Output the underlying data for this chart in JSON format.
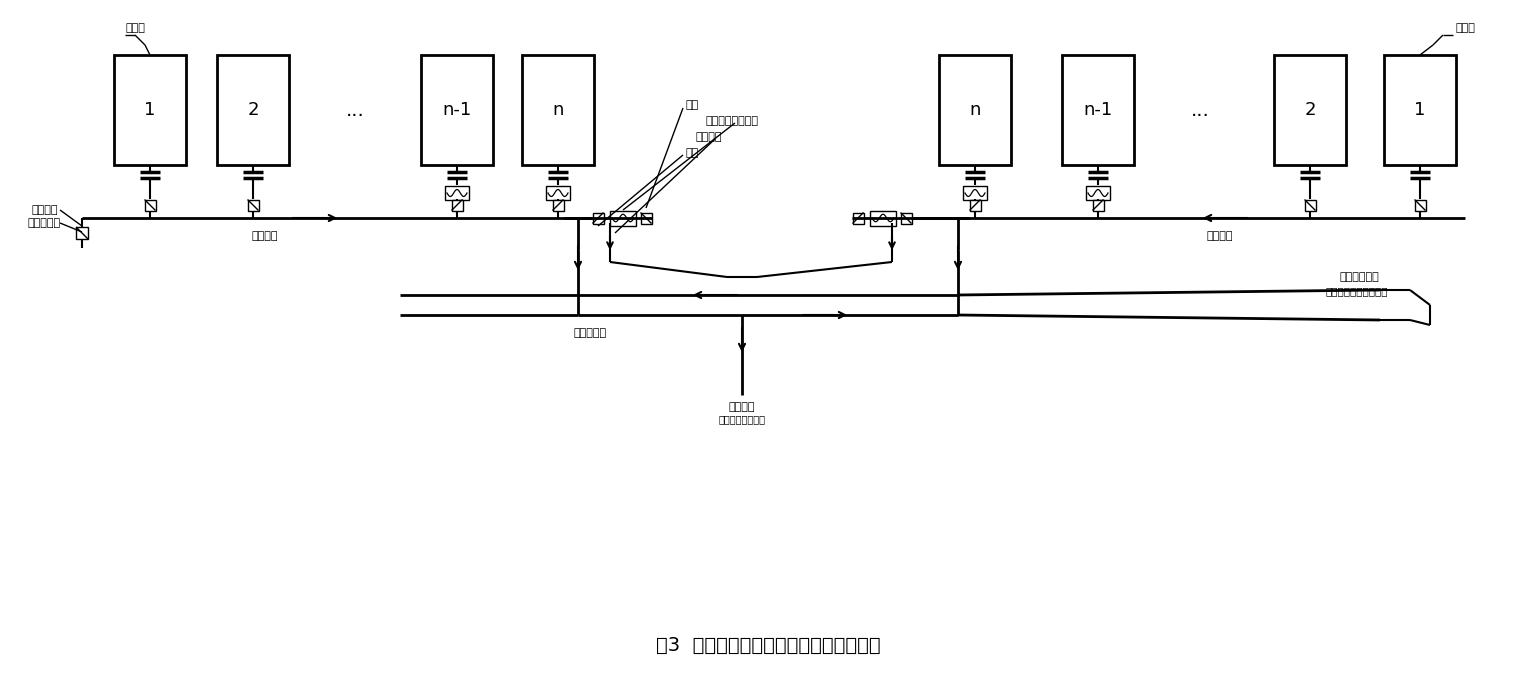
{
  "title": "图3  支烟管烟气余热回收利用流程示意图",
  "bg_color": "#ffffff",
  "left_tanks": [
    "1",
    "2",
    "...",
    "n-1",
    "n"
  ],
  "right_tanks": [
    "n",
    "n-1",
    "...",
    "2",
    "1"
  ],
  "label_dianjiecao_left": "电解槽",
  "label_dianjiecao_right": "电解槽",
  "label_zhigan": "烟叉支管",
  "label_zhiganfa": "烟叉支管阀",
  "label_yanguangan_left": "烟管干管",
  "label_yanguangan_right": "烟管干管",
  "label_famen1": "阀门",
  "label_yurere": "余热回收换热模块",
  "label_pangtong": "旁通烟管",
  "label_famen2": "阀门",
  "label_zongguancaption": "烟管总管",
  "label_yindaojinghua": "引至电解烟气净化",
  "label_ercirelueguan": "二次热媒管",
  "label_yinzhire": "引至热用户处",
  "label_sancire": "与三次热媒进行热交换"
}
